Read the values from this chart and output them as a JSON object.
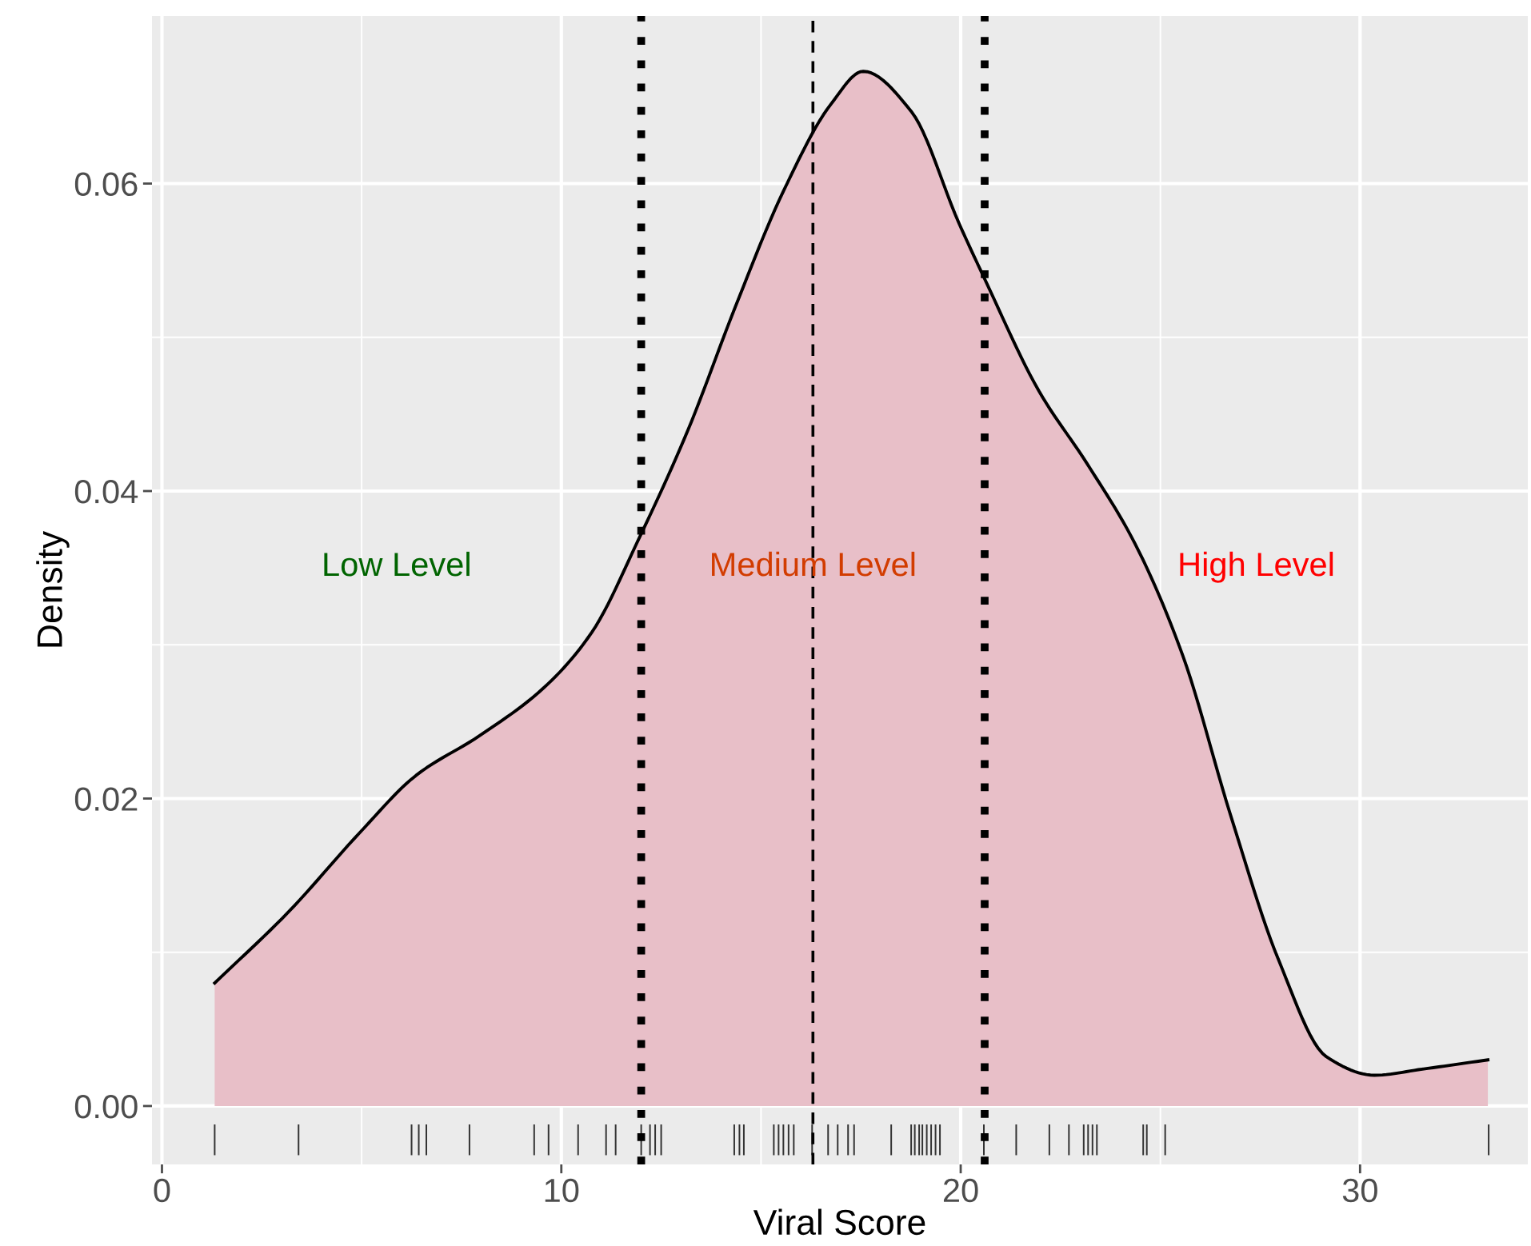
{
  "chart_data": {
    "type": "area",
    "xlabel": "Viral Score",
    "ylabel": "Density",
    "xlim": [
      -0.25,
      34.2
    ],
    "ylim": [
      -0.0038,
      0.0709
    ],
    "xticks": [
      0,
      10,
      20,
      30
    ],
    "yticks": [
      {
        "value": 0,
        "label": "0.00"
      },
      {
        "value": 0.02,
        "label": "0.02"
      },
      {
        "value": 0.04,
        "label": "0.04"
      },
      {
        "value": 0.06,
        "label": "0.06"
      }
    ],
    "grid": true,
    "legend": false,
    "series": [
      {
        "color": "#e8bfc8",
        "x": [
          1.32,
          3.16,
          4.96,
          6.36,
          7.96,
          9.56,
          10.76,
          11.96,
          13.16,
          14.36,
          15.56,
          16.76,
          17.56,
          18.76,
          19.96,
          20.6,
          21.96,
          23.16,
          24.36,
          25.56,
          26.76,
          27.96,
          29.16,
          30.36,
          31.56,
          33.2
        ],
        "values": [
          0.008,
          0.0126,
          0.0178,
          0.0215,
          0.0241,
          0.0272,
          0.0308,
          0.037,
          0.0439,
          0.052,
          0.0595,
          0.0652,
          0.0673,
          0.0647,
          0.0574,
          0.0538,
          0.0465,
          0.0418,
          0.0366,
          0.0293,
          0.0189,
          0.0095,
          0.0032,
          0.002,
          0.0024,
          0.003
        ]
      },
      {
        "type": "bar",
        "color": "#333333",
        "base": [
          -0.0032,
          -0.0032,
          -0.0032,
          -0.0032,
          -0.0032,
          -0.0032,
          -0.0032,
          -0.0032,
          -0.0032,
          -0.0032,
          -0.0032,
          -0.0032,
          -0.0032,
          -0.0032,
          -0.0032,
          -0.0032,
          -0.0032,
          -0.0032,
          -0.0032,
          -0.0032,
          -0.0032,
          -0.0032,
          -0.0032,
          -0.0032,
          -0.0032,
          -0.0032,
          -0.0032,
          -0.0032,
          -0.0032,
          -0.0032,
          -0.0032,
          -0.0032,
          -0.0032,
          -0.0032,
          -0.0032,
          -0.0032,
          -0.0032,
          -0.0032,
          -0.0032,
          -0.0032,
          -0.0032,
          -0.0032,
          -0.0032,
          -0.0032,
          -0.0032,
          -0.0032,
          -0.0032,
          -0.0032,
          -0.0032
        ],
        "x": [
          1.32,
          3.42,
          6.25,
          6.43,
          6.62,
          7.7,
          9.32,
          9.68,
          10.42,
          11.12,
          11.36,
          12.0,
          12.22,
          12.35,
          12.5,
          14.33,
          14.46,
          14.57,
          15.32,
          15.44,
          15.56,
          15.69,
          15.82,
          16.28,
          16.68,
          16.92,
          17.18,
          17.33,
          18.26,
          18.76,
          18.85,
          18.96,
          19.04,
          19.15,
          19.26,
          19.37,
          19.48,
          20.58,
          21.39,
          22.22,
          22.71,
          23.08,
          23.19,
          23.3,
          23.41,
          24.57,
          24.66,
          25.12,
          33.22
        ],
        "values": [
          0.002,
          0.002,
          0.002,
          0.002,
          0.002,
          0.002,
          0.002,
          0.002,
          0.002,
          0.002,
          0.002,
          0.002,
          0.002,
          0.002,
          0.002,
          0.002,
          0.002,
          0.002,
          0.002,
          0.002,
          0.002,
          0.002,
          0.002,
          0.002,
          0.002,
          0.002,
          0.002,
          0.002,
          0.002,
          0.002,
          0.002,
          0.002,
          0.002,
          0.002,
          0.002,
          0.002,
          0.002,
          0.002,
          0.002,
          0.002,
          0.002,
          0.002,
          0.002,
          0.002,
          0.002,
          0.002,
          0.002,
          0.002,
          0.002
        ]
      }
    ],
    "ref_lines": [
      {
        "axis": "x",
        "value": 12.0,
        "color": "#000000",
        "line_style": "dotted"
      },
      {
        "axis": "x",
        "value": 16.3,
        "color": "#000000",
        "line_style": "dashed"
      },
      {
        "axis": "x",
        "value": 20.6,
        "color": "#000000",
        "line_style": "dotted"
      }
    ],
    "annotations": [
      "Low Level",
      "Medium Level",
      "High Level"
    ]
  }
}
